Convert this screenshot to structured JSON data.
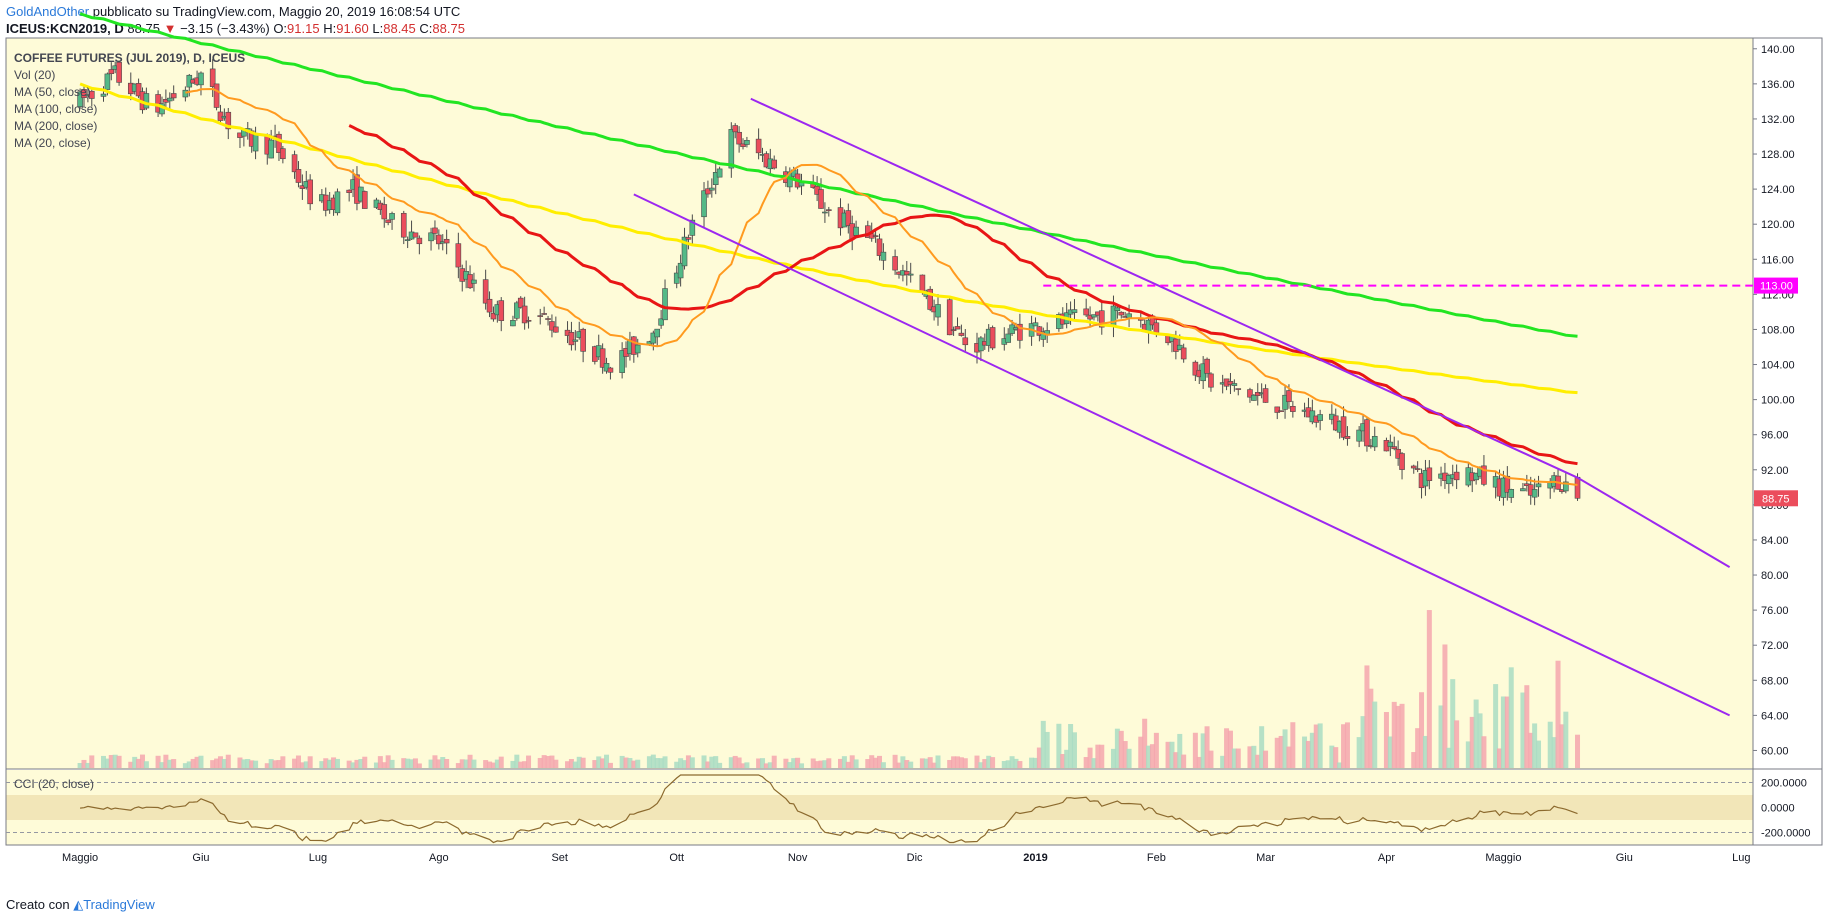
{
  "header": {
    "user": "GoldAndOther",
    "published": " pubblicato su TradingView.com, Maggio 20, 2019 16:08:54 UTC",
    "symbol": "ICEUS:KCN2019, D",
    "last": "88.75",
    "change": "−3.15 (−3.43%)",
    "o_label": "O:",
    "o": "91.15",
    "h_label": "H:",
    "h": "91.60",
    "l_label": "L:",
    "l": "88.45",
    "c_label": "C:",
    "c": "88.75"
  },
  "legend": [
    "COFFEE FUTURES (JUL 2019), D, ICEUS",
    "Vol (20)",
    "MA (50, close)",
    "MA (100, close)",
    "MA (200, close)",
    "MA (20, close)"
  ],
  "cci_label": "CCI (20, close)",
  "footer": {
    "prefix": "Creato con ",
    "brand": "TradingView"
  },
  "colors": {
    "background": "#fefbd8",
    "up": "#53b987",
    "down": "#eb4d5c",
    "ma20": "#ff9a1f",
    "ma50": "#e81515",
    "ma100": "#ffee00",
    "ma200": "#22e522",
    "channel": "#9c27f0",
    "level": "#ff00ff",
    "cci": "#8c6a2e"
  },
  "chart_data": {
    "type": "candlestick",
    "title": "COFFEE FUTURES (JUL 2019), D, ICEUS",
    "ylim": [
      58,
      141
    ],
    "y_ticks": [
      "140.00",
      "136.00",
      "132.00",
      "128.00",
      "124.00",
      "120.00",
      "116.00",
      "112.00",
      "108.00",
      "104.00",
      "100.00",
      "96.00",
      "92.00",
      "88.00",
      "84.00",
      "80.00",
      "76.00",
      "72.00",
      "68.00",
      "64.00",
      "60.00"
    ],
    "x_ticks": [
      "Maggio",
      "Giu",
      "Lug",
      "Ago",
      "Set",
      "Ott",
      "Nov",
      "Dic",
      "2019",
      "Feb",
      "Mar",
      "Apr",
      "Maggio",
      "Giu",
      "Lug"
    ],
    "last_price_label": "88.75",
    "horizontal_level": {
      "value": 113.0,
      "label": "113.00",
      "from": "2019-01-03"
    },
    "anchors": [
      [
        "2018-05-01",
        134.0
      ],
      [
        "2018-05-10",
        137.0
      ],
      [
        "2018-05-20",
        133.0
      ],
      [
        "2018-06-01",
        137.0
      ],
      [
        "2018-06-10",
        130.0
      ],
      [
        "2018-06-20",
        129.0
      ],
      [
        "2018-07-01",
        122.0
      ],
      [
        "2018-07-10",
        124.0
      ],
      [
        "2018-07-20",
        120.0
      ],
      [
        "2018-08-01",
        118.0
      ],
      [
        "2018-08-15",
        110.0
      ],
      [
        "2018-08-25",
        110.0
      ],
      [
        "2018-09-05",
        107.0
      ],
      [
        "2018-09-15",
        104.0
      ],
      [
        "2018-09-25",
        108.0
      ],
      [
        "2018-10-05",
        120.0
      ],
      [
        "2018-10-15",
        130.0
      ],
      [
        "2018-10-22",
        128.0
      ],
      [
        "2018-11-01",
        125.0
      ],
      [
        "2018-11-10",
        121.0
      ],
      [
        "2018-11-20",
        118.0
      ],
      [
        "2018-12-01",
        113.0
      ],
      [
        "2018-12-15",
        106.0
      ],
      [
        "2018-12-28",
        108.0
      ],
      [
        "2019-01-10",
        109.0
      ],
      [
        "2019-01-25",
        110.0
      ],
      [
        "2019-02-05",
        107.0
      ],
      [
        "2019-02-15",
        102.0
      ],
      [
        "2019-03-01",
        100.0
      ],
      [
        "2019-03-15",
        98.0
      ],
      [
        "2019-04-01",
        95.0
      ],
      [
        "2019-04-10",
        91.0
      ],
      [
        "2019-04-20",
        92.0
      ],
      [
        "2019-05-01",
        90.0
      ],
      [
        "2019-05-08",
        89.0
      ],
      [
        "2019-05-15",
        91.0
      ],
      [
        "2019-05-20",
        88.75
      ]
    ],
    "ma_end_values": {
      "ma20": 91.2,
      "ma50": 94.8,
      "ma100": 100.8,
      "ma200": 108.4
    },
    "channel": {
      "upper": [
        [
          "2018-10-20",
          134.3
        ],
        [
          "2019-05-20",
          91.1
        ],
        [
          "2019-06-28",
          80.9
        ]
      ],
      "lower": [
        [
          "2018-09-20",
          123.4
        ],
        [
          "2019-06-28",
          64.0
        ]
      ]
    },
    "volume_spikes": [
      [
        "2019-04-12",
        78
      ],
      [
        "2019-04-14",
        57
      ],
      [
        "2019-04-16",
        61
      ]
    ],
    "cci": {
      "levels": [
        "200.0000",
        "0.0000",
        "-200.0000"
      ],
      "band": [
        100,
        -100
      ],
      "ylim": [
        -300,
        300
      ]
    }
  }
}
